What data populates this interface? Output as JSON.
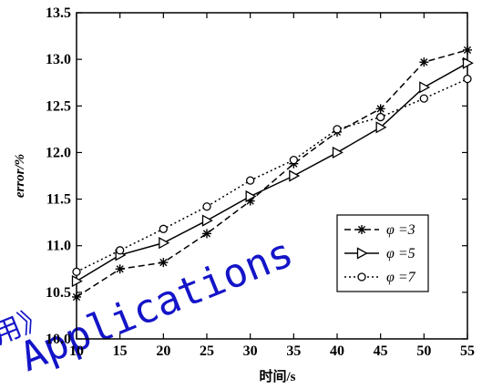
{
  "chart_data": {
    "type": "line",
    "xlabel": "时间/s",
    "ylabel": "error/%",
    "xlim": [
      10,
      55
    ],
    "ylim": [
      10.0,
      13.5
    ],
    "x_ticks": [
      "10",
      "15",
      "20",
      "25",
      "30",
      "35",
      "40",
      "45",
      "50",
      "55"
    ],
    "y_ticks": [
      "10.0",
      "10.5",
      "11.0",
      "11.5",
      "12.0",
      "12.5",
      "13.0",
      "13.5"
    ],
    "grid": false,
    "legend_position": "lower-right",
    "x": [
      10,
      15,
      20,
      25,
      30,
      35,
      40,
      45,
      50,
      55
    ],
    "series": [
      {
        "name": "φ =3",
        "marker": "asterisk",
        "line_style": "dashed",
        "values": [
          10.45,
          10.75,
          10.82,
          11.13,
          11.48,
          11.88,
          12.22,
          12.47,
          12.97,
          13.1
        ]
      },
      {
        "name": "φ =5",
        "marker": "triangle-right",
        "line_style": "solid",
        "values": [
          10.62,
          10.9,
          11.03,
          11.27,
          11.53,
          11.75,
          12.0,
          12.27,
          12.7,
          12.96
        ]
      },
      {
        "name": "φ =7",
        "marker": "circle",
        "line_style": "dotted",
        "values": [
          10.72,
          10.95,
          11.18,
          11.42,
          11.7,
          11.92,
          12.25,
          12.38,
          12.58,
          12.79
        ]
      }
    ]
  },
  "watermark": {
    "line1": "用》",
    "line2": "Applications"
  }
}
